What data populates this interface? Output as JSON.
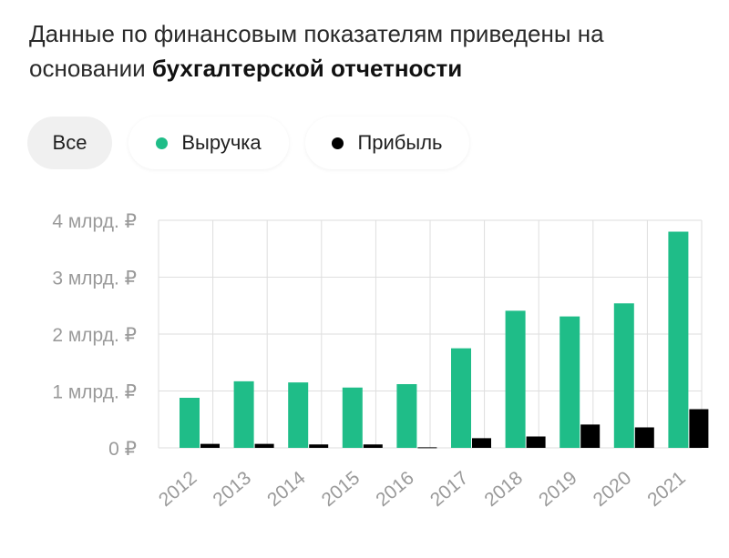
{
  "heading": {
    "line1": "Данные по финансовым показателям приведены на",
    "line2_regular": "основании ",
    "line2_bold": "бухгалтерской отчетности"
  },
  "filters": {
    "all": "Все",
    "revenue": "Выручка",
    "profit": "Прибыль"
  },
  "colors": {
    "revenue": "#1fbd88",
    "profit": "#000000",
    "grid": "#dedede",
    "axis_text": "#9a9a9a"
  },
  "chart_data": {
    "type": "bar",
    "categories": [
      "2012",
      "2013",
      "2014",
      "2015",
      "2016",
      "2017",
      "2018",
      "2019",
      "2020",
      "2021"
    ],
    "series": [
      {
        "name": "Выручка",
        "values": [
          0.88,
          1.17,
          1.15,
          1.06,
          1.12,
          1.75,
          2.41,
          2.31,
          2.54,
          3.8
        ]
      },
      {
        "name": "Прибыль",
        "values": [
          0.07,
          0.07,
          0.06,
          0.06,
          0.01,
          0.17,
          0.2,
          0.41,
          0.36,
          0.68
        ]
      }
    ],
    "ylim": [
      0,
      4
    ],
    "yticks": [
      0,
      1,
      2,
      3,
      4
    ],
    "ytick_labels": [
      "0 ₽",
      "1 млрд. ₽",
      "2 млрд. ₽",
      "3 млрд. ₽",
      "4 млрд. ₽"
    ],
    "grid": true,
    "legend": "top"
  }
}
